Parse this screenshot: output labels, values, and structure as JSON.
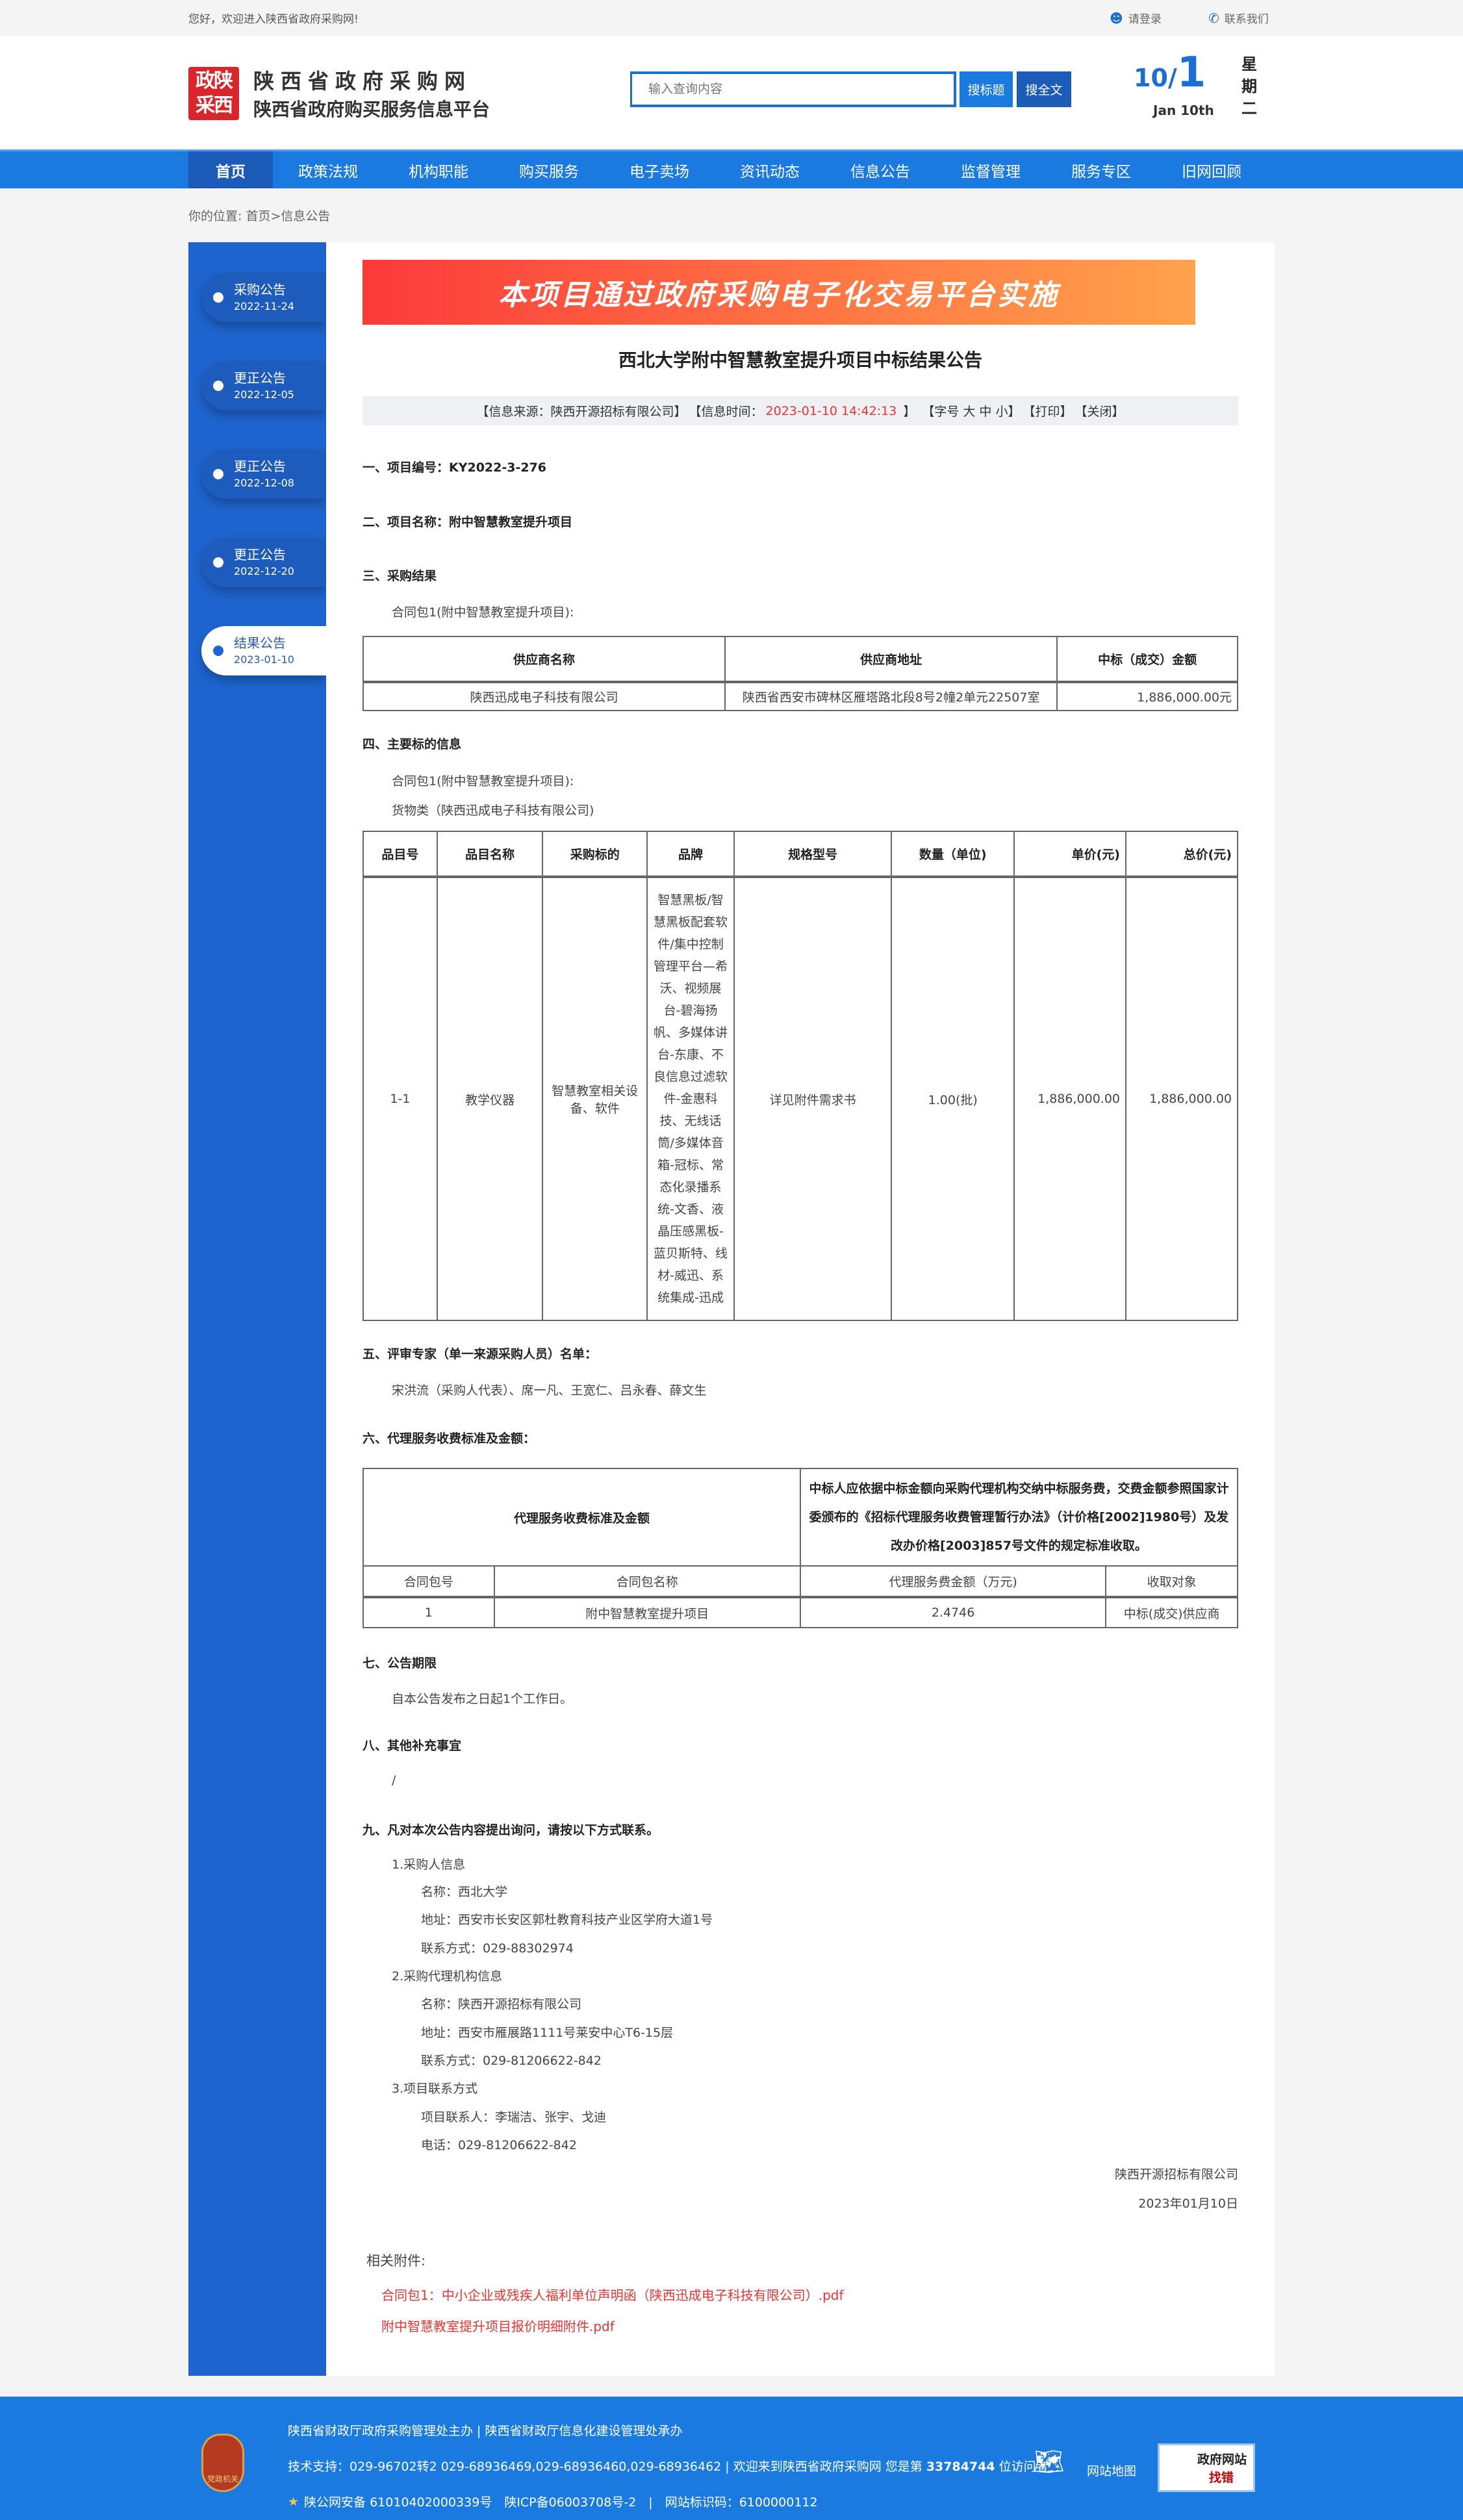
{
  "topbar": {
    "welcome": "您好，欢迎进入陕西省政府采购网!",
    "login": "请登录",
    "contact": "联系我们"
  },
  "header": {
    "seal": [
      "政陕",
      "采西"
    ],
    "logo_title": "陕西省政府采购网",
    "logo_subtitle": "陕西省政府购买服务信息平台",
    "search_placeholder": "输入查询内容",
    "search_title_btn": "搜标题",
    "search_full_btn": "搜全文",
    "date_month": "10/",
    "date_day": "1",
    "date_en": "Jan 10th",
    "weekday": [
      "星",
      "期",
      "二"
    ]
  },
  "nav": [
    "首页",
    "政策法规",
    "机构职能",
    "购买服务",
    "电子卖场",
    "资讯动态",
    "信息公告",
    "监督管理",
    "服务专区",
    "旧网回顾"
  ],
  "breadcrumb": {
    "label": "你的位置:",
    "home": "首页",
    "sep": ">",
    "current": "信息公告"
  },
  "sidebar": [
    {
      "label": "采购公告",
      "date": "2022-11-24"
    },
    {
      "label": "更正公告",
      "date": "2022-12-05"
    },
    {
      "label": "更正公告",
      "date": "2022-12-08"
    },
    {
      "label": "更正公告",
      "date": "2022-12-20"
    },
    {
      "label": "结果公告",
      "date": "2023-01-10",
      "active": true
    }
  ],
  "article": {
    "banner": "本项目通过政府采购电子化交易平台实施",
    "title": "西北大学附中智慧教室提升项目中标结果公告",
    "info": {
      "source": "【信息来源：陕西开源招标有限公司】",
      "time_label": "【信息时间：",
      "time": "2023-01-10 14:42:13",
      "time_end": "】",
      "font": "【字号 大 中 小】",
      "print": "【打印】",
      "close": "【关闭】"
    },
    "s1": "一、项目编号：KY2022-3-276",
    "s2": "二、项目名称：附中智慧教室提升项目",
    "s3": "三、采购结果",
    "s3_pkg": "合同包1(附中智慧教室提升项目):",
    "t1": {
      "headers": [
        "供应商名称",
        "供应商地址",
        "中标（成交）金额"
      ],
      "row": [
        "陕西迅成电子科技有限公司",
        "陕西省西安市碑林区雁塔路北段8号2幢2单元22507室",
        "1,886,000.00元"
      ]
    },
    "s4": "四、主要标的信息",
    "s4_pkg": "合同包1(附中智慧教室提升项目):",
    "s4_cat": "货物类（陕西迅成电子科技有限公司)",
    "t2": {
      "headers": [
        "品目号",
        "品目名称",
        "采购标的",
        "品牌",
        "规格型号",
        "数量（单位)",
        "单价(元)",
        "总价(元)"
      ],
      "row": [
        "1-1",
        "教学仪器",
        "智慧教室相关设备、软件",
        "智慧黑板/智慧黑板配套软件/集中控制管理平台—希沃、视频展台-碧海扬帆、多媒体讲台-东康、不良信息过滤软件-金惠科技、无线话筒/多媒体音箱-冠标、常态化录播系统-文香、液晶压感黑板-蓝贝斯特、线材-威迅、系统集成-迅成",
        "详见附件需求书",
        "1.00(批)",
        "1,886,000.00",
        "1,886,000.00"
      ]
    },
    "s5": "五、评审专家（单一来源采购人员）名单：",
    "s5_text": "宋洪流（采购人代表）、席一凡、王宽仁、吕永春、薛文生",
    "s6": "六、代理服务收费标准及金额：",
    "t3": {
      "top_left": "代理服务收费标准及金额",
      "top_right": "中标人应依据中标金额向采购代理机构交纳中标服务费，交费金额参照国家计委颁布的《招标代理服务收费管理暂行办法》（计价格[2002]1980号）及发改办价格[2003]857号文件的规定标准收取。",
      "headers": [
        "合同包号",
        "合同包名称",
        "代理服务费金额（万元)",
        "收取对象"
      ],
      "row": [
        "1",
        "附中智慧教室提升项目",
        "2.4746",
        "中标(成交)供应商"
      ]
    },
    "s7": "七、公告期限",
    "s7_text": "自本公告发布之日起1个工作日。",
    "s8": "八、其他补充事宜",
    "s8_text": "/",
    "s9": "九、凡对本次公告内容提出询问，请按以下方式联系。",
    "contacts": [
      {
        "title": "1.采购人信息",
        "lines": [
          "名称：西北大学",
          "地址：西安市长安区郭杜教育科技产业区学府大道1号",
          "联系方式：029-88302974"
        ]
      },
      {
        "title": "2.采购代理机构信息",
        "lines": [
          "名称：陕西开源招标有限公司",
          "地址：西安市雁展路1111号莱安中心T6-15层",
          "联系方式：029-81206622-842"
        ]
      },
      {
        "title": "3.项目联系方式",
        "lines": [
          "项目联系人：李瑞洁、张宇、戈迪",
          "电话：029-81206622-842"
        ]
      }
    ],
    "sign_company": "陕西开源招标有限公司",
    "sign_date": "2023年01月10日",
    "attach_label": "相关附件:",
    "attachments": [
      "合同包1：中小企业或残疾人福利单位声明函（陕西迅成电子科技有限公司）.pdf",
      "附中智慧教室提升项目报价明细附件.pdf"
    ]
  },
  "footer": {
    "line1": "陕西省财政厅政府采购管理处主办 | 陕西省财政厅信息化建设管理处承办",
    "line2_pre": "技术支持：029-96702转2 029-68936469,029-68936460,029-68936462 | 欢迎来到陕西省政府采购网 您是第 ",
    "visitors": "33784744",
    "line2_post": " 位访问者",
    "line3": "陕公网安备 61010402000339号　陕ICP备06003708号-2　|　网站标识码：6100000112",
    "sitemap": "网站地图",
    "badge_top": "政府网站",
    "badge_bottom": "找错",
    "party_badge": "党政机关"
  },
  "colors": {
    "brand_blue": "#1a7ae0",
    "sidebar_blue": "#1e64ce",
    "accent_red": "#e33333"
  }
}
